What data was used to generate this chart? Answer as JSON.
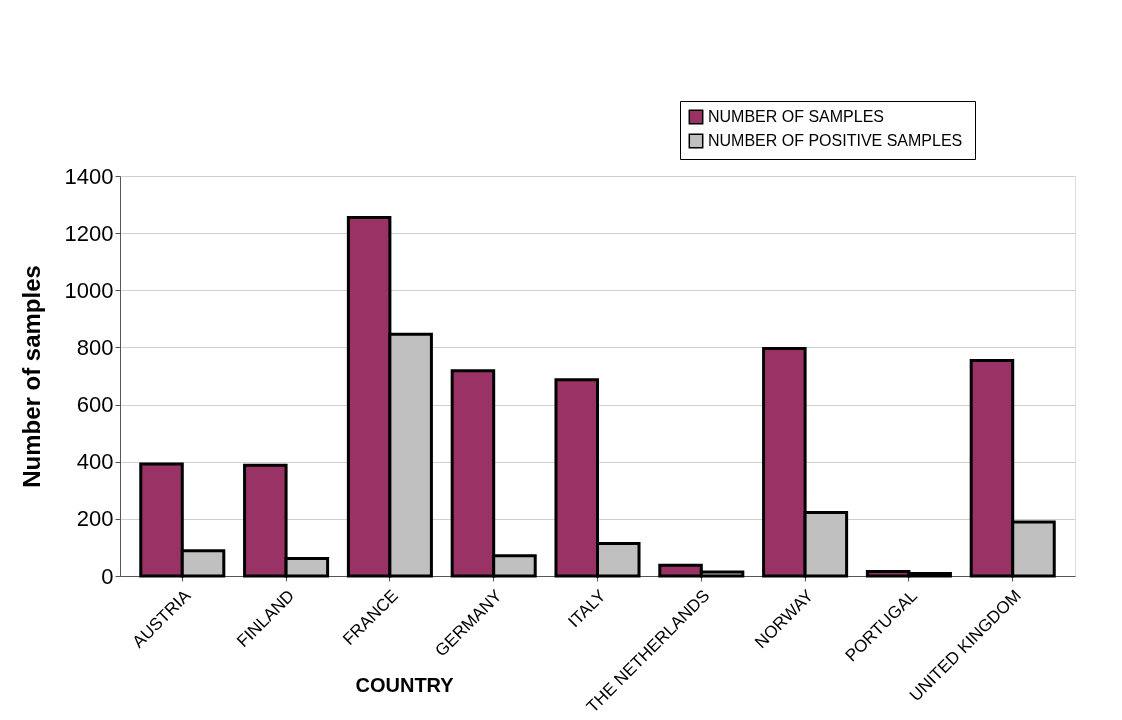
{
  "chart_data": {
    "type": "bar",
    "xlabel": "COUNTRY",
    "ylabel": "Number of samples",
    "categories": [
      "AUSTRIA",
      "FINLAND",
      "FRANCE",
      "GERMANY",
      "ITALY",
      "THE NETHERLANDS",
      "NORWAY",
      "PORTUGAL",
      "UNITED KINGDOM"
    ],
    "series": [
      {
        "name": "NUMBER OF  SAMPLES",
        "color": "#993366",
        "values": [
          392,
          388,
          1255,
          718,
          687,
          38,
          796,
          16,
          754
        ]
      },
      {
        "name": "NUMBER OF  POSITIVE SAMPLES",
        "color": "#c0c0c0",
        "values": [
          88,
          61,
          846,
          71,
          114,
          14,
          222,
          9,
          189
        ]
      }
    ],
    "ylim": [
      0,
      1400
    ],
    "yticks": [
      0,
      200,
      400,
      600,
      800,
      1000,
      1200,
      1400
    ],
    "grid": "y",
    "legend": "top right"
  }
}
